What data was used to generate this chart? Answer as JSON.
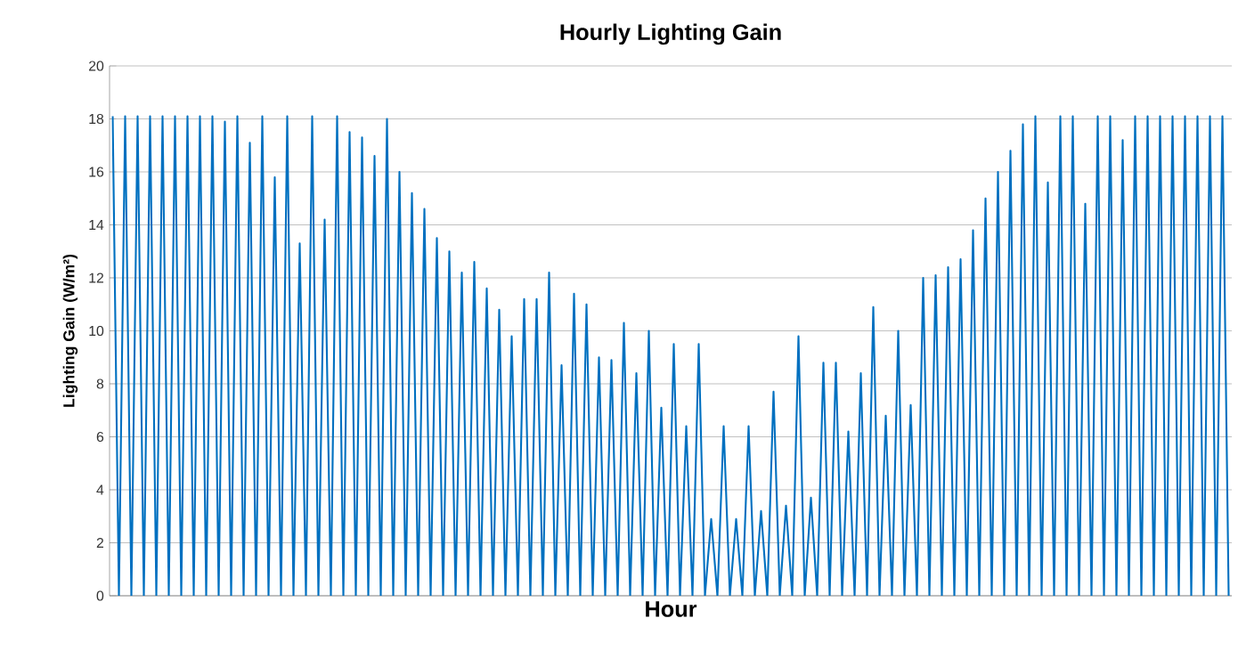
{
  "chart_data": {
    "type": "line",
    "title": "Hourly Lighting Gain",
    "xlabel": "Hour",
    "ylabel": "Lighting Gain (W/m²)",
    "categories": [
      null,
      null,
      null,
      null,
      null,
      null,
      null,
      null,
      null,
      null,
      null,
      null,
      null,
      null,
      null,
      null,
      null,
      null,
      null,
      null,
      null,
      null,
      null,
      null,
      null,
      null,
      null,
      null,
      null,
      null,
      null,
      null,
      null,
      null,
      null,
      null,
      null,
      null,
      null,
      null,
      null,
      null,
      null,
      null,
      null,
      null,
      null,
      null,
      null,
      null,
      null,
      null,
      null,
      null,
      null,
      null,
      null,
      null,
      null,
      null,
      null,
      null,
      null,
      null,
      null,
      null,
      null,
      null,
      null,
      null,
      null,
      null,
      null,
      null,
      null,
      null,
      null,
      null,
      null,
      null,
      null,
      null,
      null,
      null,
      null,
      null,
      null,
      null,
      null,
      null,
      null,
      null,
      null,
      null,
      null,
      null,
      null,
      null,
      null,
      null,
      null,
      null,
      null,
      null,
      null,
      null,
      null,
      null,
      null,
      null,
      null,
      null,
      null,
      null,
      null,
      null,
      null,
      null,
      null,
      null,
      null,
      null,
      null,
      null,
      null,
      null,
      null,
      null,
      null,
      null,
      null,
      null,
      null,
      null,
      null,
      null,
      null,
      null,
      null,
      null,
      null,
      null,
      null,
      null,
      null,
      null,
      null,
      null,
      null,
      null,
      null,
      null,
      null,
      null,
      null,
      null,
      null,
      null,
      null,
      null,
      null,
      null,
      null,
      null,
      null,
      null,
      null,
      null,
      null,
      null,
      null,
      null,
      null,
      null,
      null,
      null,
      null,
      null,
      null,
      null
    ],
    "series": [
      {
        "color": "#0070c0",
        "values": [
          18.1,
          0,
          18.1,
          0,
          18.1,
          0,
          18.1,
          0,
          18.1,
          0,
          18.1,
          0,
          18.1,
          0,
          18.1,
          0,
          18.1,
          0,
          17.9,
          0,
          18.1,
          0,
          17.1,
          0,
          18.1,
          0,
          15.8,
          0,
          18.1,
          0,
          13.3,
          0,
          18.1,
          0,
          14.2,
          0,
          18.1,
          0,
          17.5,
          0,
          17.3,
          0,
          16.6,
          0,
          18.0,
          0,
          16.0,
          0,
          15.2,
          0,
          14.6,
          0,
          13.5,
          0,
          13.0,
          0,
          12.2,
          0,
          12.6,
          0,
          11.6,
          0,
          10.8,
          0,
          9.8,
          0,
          11.2,
          0,
          11.2,
          0,
          12.2,
          0,
          8.7,
          0,
          11.4,
          0,
          11.0,
          0,
          9.0,
          0,
          8.9,
          0,
          10.3,
          0,
          8.4,
          0,
          10.0,
          0,
          7.1,
          0,
          9.5,
          0,
          6.4,
          0,
          9.5,
          0,
          2.9,
          0,
          6.4,
          0,
          2.9,
          0,
          6.4,
          0,
          3.2,
          0,
          7.7,
          0,
          3.4,
          0,
          9.8,
          0,
          3.7,
          0,
          8.8,
          0,
          8.8,
          0,
          6.2,
          0,
          8.4,
          0,
          10.9,
          0,
          6.8,
          0,
          10.0,
          0,
          7.2,
          0,
          12.0,
          0,
          12.1,
          0,
          12.4,
          0,
          12.7,
          0,
          13.8,
          0,
          15.0,
          0,
          16.0,
          0,
          16.8,
          0,
          17.8,
          0,
          18.1,
          0,
          15.6,
          0,
          18.1,
          0,
          18.1,
          0,
          14.8,
          0,
          18.1,
          0,
          18.1,
          0,
          17.2,
          0,
          18.1,
          0,
          18.1,
          0,
          18.1,
          0,
          18.1,
          0,
          18.1,
          0,
          18.1,
          0,
          18.1,
          0,
          18.1,
          0
        ]
      }
    ],
    "ylim": [
      0,
      20
    ],
    "yticks": [
      0,
      2,
      4,
      6,
      8,
      10,
      12,
      14,
      16,
      18,
      20
    ],
    "grid": "y",
    "line_style": "solid",
    "marker": "none"
  }
}
